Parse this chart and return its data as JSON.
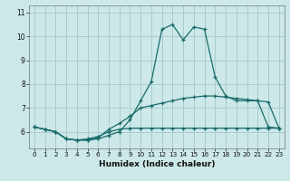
{
  "xlabel": "Humidex (Indice chaleur)",
  "background_color": "#cce8e8",
  "grid_color": "#aacccc",
  "line_color": "#1a6b6b",
  "x_values": [
    0,
    1,
    2,
    3,
    4,
    5,
    6,
    7,
    8,
    9,
    10,
    11,
    12,
    13,
    14,
    15,
    16,
    17,
    18,
    19,
    20,
    21,
    22,
    23
  ],
  "line1_y": [
    6.2,
    6.1,
    6.0,
    5.7,
    5.65,
    5.65,
    5.7,
    5.85,
    6.0,
    6.5,
    7.3,
    8.1,
    10.3,
    10.5,
    9.85,
    10.4,
    10.3,
    8.3,
    7.5,
    7.3,
    7.3,
    7.3,
    6.2,
    6.15
  ],
  "line2_y": [
    6.2,
    6.1,
    6.0,
    5.7,
    5.65,
    5.65,
    5.75,
    6.1,
    6.35,
    6.65,
    7.0,
    7.1,
    7.2,
    7.3,
    7.4,
    7.45,
    7.5,
    7.5,
    7.45,
    7.4,
    7.35,
    7.3,
    7.25,
    6.15
  ],
  "line3_y": [
    6.2,
    6.1,
    6.0,
    5.7,
    5.65,
    5.7,
    5.8,
    6.0,
    6.1,
    6.15,
    6.15,
    6.15,
    6.15,
    6.15,
    6.15,
    6.15,
    6.15,
    6.15,
    6.15,
    6.15,
    6.15,
    6.15,
    6.15,
    6.15
  ],
  "ylim": [
    5.3,
    11.3
  ],
  "xlim": [
    -0.5,
    23.5
  ],
  "yticks": [
    6,
    7,
    8,
    9,
    10,
    11
  ],
  "xticks": [
    0,
    1,
    2,
    3,
    4,
    5,
    6,
    7,
    8,
    9,
    10,
    11,
    12,
    13,
    14,
    15,
    16,
    17,
    18,
    19,
    20,
    21,
    22,
    23
  ]
}
